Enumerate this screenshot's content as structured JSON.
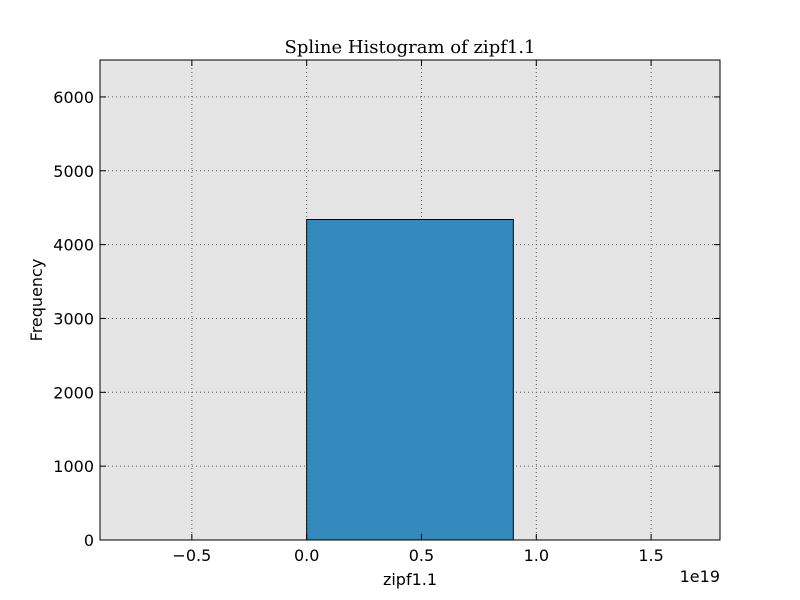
{
  "chart_data": {
    "type": "bar",
    "title": "Spline Histogram of zipf1.1",
    "xlabel": "zipf1.1",
    "ylabel": "Frequency",
    "x_offset_label": "1e19",
    "xlim": [
      -0.9,
      1.8
    ],
    "ylim": [
      0,
      6500
    ],
    "x_ticks": [
      -0.5,
      0.0,
      0.5,
      1.0,
      1.5
    ],
    "x_tick_labels": [
      "−0.5",
      "0.0",
      "0.5",
      "1.0",
      "1.5"
    ],
    "y_ticks": [
      0,
      1000,
      2000,
      3000,
      4000,
      5000,
      6000
    ],
    "y_tick_labels": [
      "0",
      "1000",
      "2000",
      "3000",
      "4000",
      "5000",
      "6000"
    ],
    "grid": true,
    "bars": [
      {
        "x_start": 0.0,
        "x_end": 0.9,
        "value": 4340
      }
    ],
    "colors": {
      "bar_fill": "#348abd",
      "bar_edge": "#000000",
      "plot_background": "#e5e5e5",
      "grid": "#555555"
    }
  }
}
